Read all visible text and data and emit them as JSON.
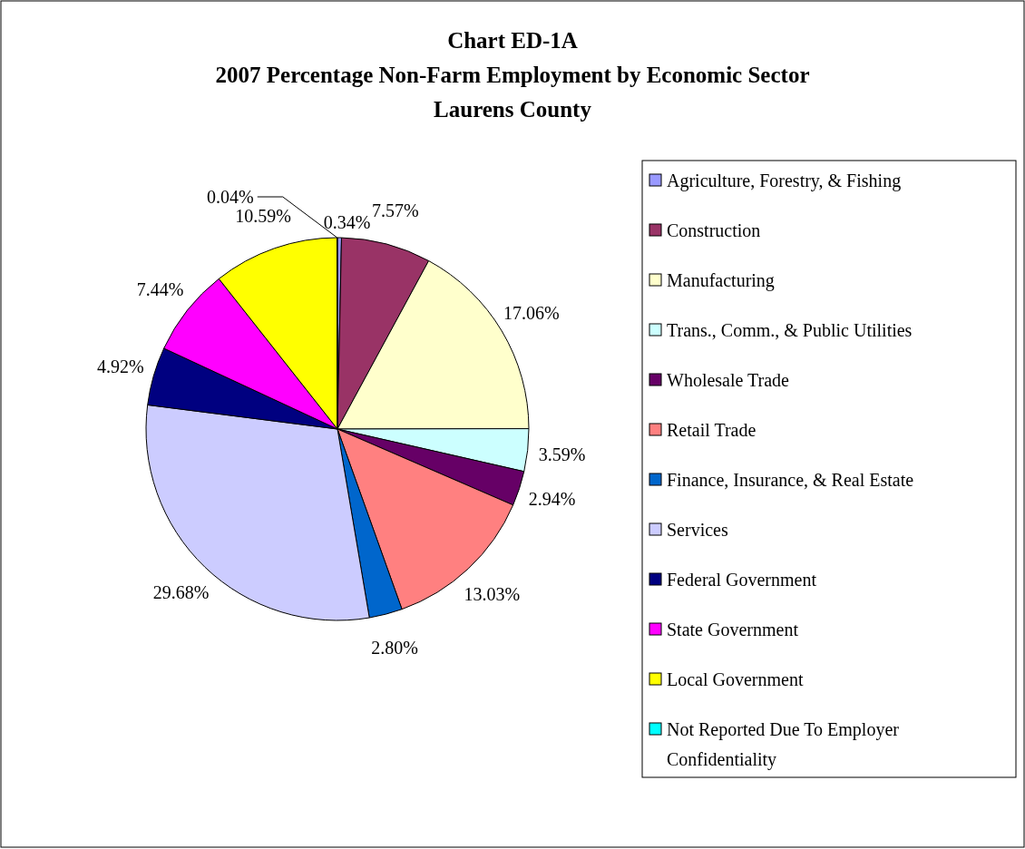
{
  "chart_data": {
    "type": "pie",
    "title": "Chart ED-1A\n2007 Percentage Non-Farm Employment by Economic Sector\nLaurens County",
    "categories": [
      "Agriculture, Forestry, & Fishing",
      "Construction",
      "Manufacturing",
      "Trans., Comm., & Public Utilities",
      "Wholesale Trade",
      "Retail Trade",
      "Finance, Insurance, & Real Estate",
      "Services",
      "Federal Government",
      "State Government",
      "Local Government",
      "Not Reported Due To Employer Confidentiality"
    ],
    "values": [
      0.34,
      7.57,
      17.06,
      3.59,
      2.94,
      13.03,
      2.8,
      29.68,
      4.92,
      7.44,
      10.59,
      0.04
    ],
    "value_labels": [
      "0.34%",
      "7.57%",
      "17.06%",
      "3.59%",
      "2.94%",
      "13.03%",
      "2.80%",
      "29.68%",
      "4.92%",
      "7.44%",
      "10.59%",
      "0.04%"
    ],
    "colors": [
      "#9999ff",
      "#993366",
      "#ffffcc",
      "#ccffff",
      "#660066",
      "#ff8080",
      "#0066cc",
      "#ccccff",
      "#000080",
      "#ff00ff",
      "#ffff00",
      "#00ffff"
    ],
    "legend": "right"
  }
}
